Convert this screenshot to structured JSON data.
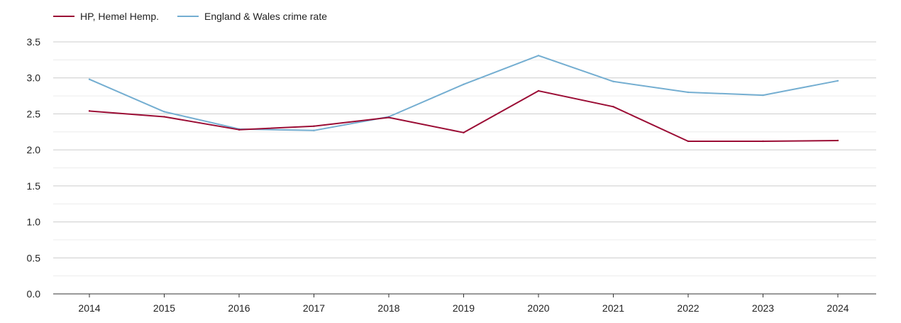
{
  "chart_data": {
    "type": "line",
    "title": "",
    "xlabel": "",
    "ylabel": "",
    "categories": [
      "2014",
      "2015",
      "2016",
      "2017",
      "2018",
      "2019",
      "2020",
      "2021",
      "2022",
      "2023",
      "2024"
    ],
    "ylim": [
      0,
      3.5
    ],
    "y_ticks": [
      "0.0",
      "0.5",
      "1.0",
      "1.5",
      "2.0",
      "2.5",
      "3.0",
      "3.5"
    ],
    "grid": true,
    "legend_position": "top-left",
    "series": [
      {
        "name": "HP, Hemel Hemp.",
        "color": "#9b0d35",
        "values": [
          2.54,
          2.46,
          2.28,
          2.33,
          2.45,
          2.24,
          2.82,
          2.6,
          2.12,
          2.12,
          2.13
        ]
      },
      {
        "name": "England & Wales crime rate",
        "color": "#74aed1",
        "values": [
          2.98,
          2.53,
          2.29,
          2.27,
          2.46,
          2.91,
          3.31,
          2.95,
          2.8,
          2.76,
          2.96
        ]
      }
    ]
  }
}
